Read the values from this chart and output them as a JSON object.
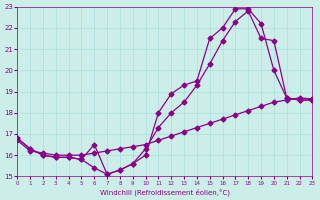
{
  "xlabel": "Windchill (Refroidissement éolien,°C)",
  "xlim": [
    0,
    23
  ],
  "ylim": [
    15,
    23
  ],
  "xticks": [
    0,
    1,
    2,
    3,
    4,
    5,
    6,
    7,
    8,
    9,
    10,
    11,
    12,
    13,
    14,
    15,
    16,
    17,
    18,
    19,
    20,
    21,
    22,
    23
  ],
  "yticks": [
    15,
    16,
    17,
    18,
    19,
    20,
    21,
    22,
    23
  ],
  "bg_color": "#cceee8",
  "line_color": "#8b008b",
  "grid_color": "#aadddd",
  "line1_x": [
    0,
    1,
    2,
    3,
    4,
    5,
    6,
    7,
    8,
    9,
    10,
    11,
    12,
    13,
    14,
    15,
    16,
    17,
    18,
    19,
    20,
    21,
    22,
    23
  ],
  "line1_y": [
    16.8,
    16.3,
    16.0,
    15.9,
    15.9,
    15.8,
    15.4,
    15.1,
    15.3,
    15.6,
    16.0,
    18.0,
    18.9,
    19.3,
    19.5,
    21.5,
    22.0,
    22.9,
    22.9,
    22.2,
    20.0,
    18.7,
    18.6,
    18.6
  ],
  "line2_x": [
    0,
    1,
    2,
    3,
    4,
    5,
    6,
    7,
    8,
    9,
    10,
    11,
    12,
    13,
    14,
    15,
    16,
    17,
    18,
    19,
    20,
    21,
    22,
    23
  ],
  "line2_y": [
    16.8,
    16.3,
    16.0,
    15.9,
    15.9,
    15.8,
    16.5,
    15.1,
    15.3,
    15.6,
    16.3,
    17.3,
    18.0,
    18.5,
    19.3,
    20.3,
    21.4,
    22.3,
    22.8,
    21.5,
    21.4,
    18.7,
    18.6,
    18.6
  ],
  "line3_x": [
    0,
    1,
    2,
    3,
    4,
    5,
    6,
    7,
    8,
    9,
    10,
    11,
    12,
    13,
    14,
    15,
    16,
    17,
    18,
    19,
    20,
    21,
    22,
    23
  ],
  "line3_y": [
    16.7,
    16.2,
    16.1,
    16.0,
    16.0,
    16.0,
    16.1,
    16.2,
    16.3,
    16.4,
    16.5,
    16.7,
    16.9,
    17.1,
    17.3,
    17.5,
    17.7,
    17.9,
    18.1,
    18.3,
    18.5,
    18.6,
    18.7,
    18.65
  ]
}
